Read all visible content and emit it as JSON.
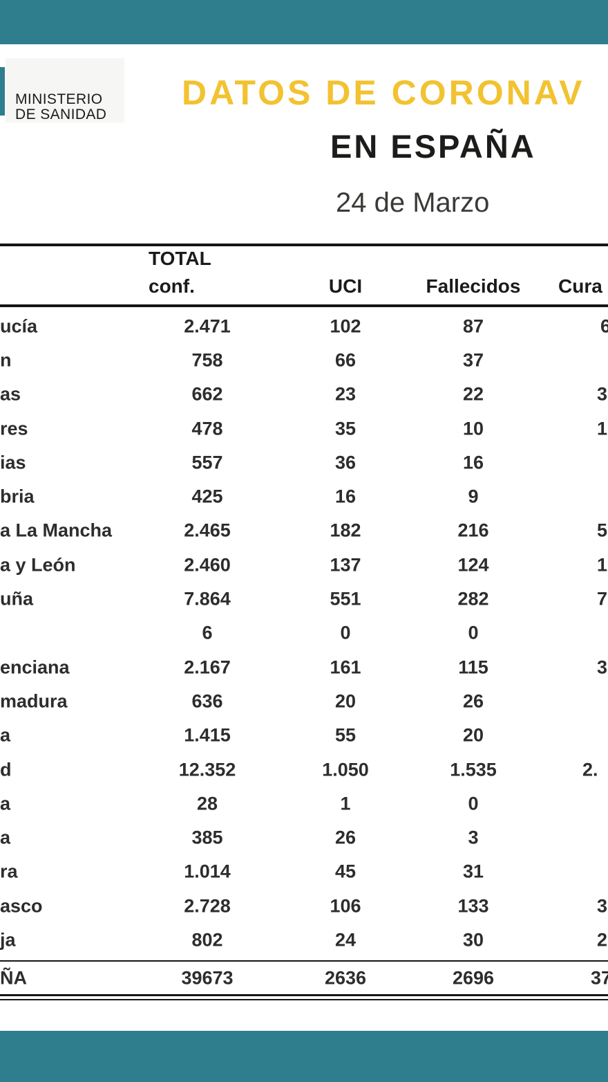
{
  "colors": {
    "teal": "#2e7e8e",
    "yellow": "#f2c230"
  },
  "header": {
    "logo_line1": "MINISTERIO",
    "logo_line2": "DE SANIDAD",
    "title_yellow": "DATOS DE CORONAV",
    "title_black": "EN ESPAÑA",
    "date": "24 de Marzo"
  },
  "table": {
    "headers": {
      "total_line1": "TOTAL",
      "total_line2": "conf.",
      "uci": "UCI",
      "fallecidos": "Fallecidos",
      "curados_partial": "Cura"
    },
    "rows": [
      {
        "region_partial": "ucía",
        "conf": "2.471",
        "uci": "102",
        "fallecidos": "87",
        "curados_partial": "6"
      },
      {
        "region_partial": "n",
        "conf": "758",
        "uci": "66",
        "fallecidos": "37",
        "curados_partial": ""
      },
      {
        "region_partial": "as",
        "conf": "662",
        "uci": "23",
        "fallecidos": "22",
        "curados_partial": "3"
      },
      {
        "region_partial": "res",
        "conf": "478",
        "uci": "35",
        "fallecidos": "10",
        "curados_partial": "1"
      },
      {
        "region_partial": "ias",
        "conf": "557",
        "uci": "36",
        "fallecidos": "16",
        "curados_partial": ""
      },
      {
        "region_partial": "bria",
        "conf": "425",
        "uci": "16",
        "fallecidos": "9",
        "curados_partial": ""
      },
      {
        "region_partial": "a La Mancha",
        "conf": "2.465",
        "uci": "182",
        "fallecidos": "216",
        "curados_partial": "5"
      },
      {
        "region_partial": "a y León",
        "conf": "2.460",
        "uci": "137",
        "fallecidos": "124",
        "curados_partial": "1"
      },
      {
        "region_partial": "uña",
        "conf": "7.864",
        "uci": "551",
        "fallecidos": "282",
        "curados_partial": "7"
      },
      {
        "region_partial": "",
        "conf": "6",
        "uci": "0",
        "fallecidos": "0",
        "curados_partial": ""
      },
      {
        "region_partial": "enciana",
        "conf": "2.167",
        "uci": "161",
        "fallecidos": "115",
        "curados_partial": "3"
      },
      {
        "region_partial": "madura",
        "conf": "636",
        "uci": "20",
        "fallecidos": "26",
        "curados_partial": ""
      },
      {
        "region_partial": "a",
        "conf": "1.415",
        "uci": "55",
        "fallecidos": "20",
        "curados_partial": ""
      },
      {
        "region_partial": "d",
        "conf": "12.352",
        "uci": "1.050",
        "fallecidos": "1.535",
        "curados_partial": "2."
      },
      {
        "region_partial": "a",
        "conf": "28",
        "uci": "1",
        "fallecidos": "0",
        "curados_partial": ""
      },
      {
        "region_partial": "a",
        "conf": "385",
        "uci": "26",
        "fallecidos": "3",
        "curados_partial": ""
      },
      {
        "region_partial": "ra",
        "conf": "1.014",
        "uci": "45",
        "fallecidos": "31",
        "curados_partial": ""
      },
      {
        "region_partial": "asco",
        "conf": "2.728",
        "uci": "106",
        "fallecidos": "133",
        "curados_partial": "3"
      },
      {
        "region_partial": "ja",
        "conf": "802",
        "uci": "24",
        "fallecidos": "30",
        "curados_partial": "2"
      }
    ],
    "total_row": {
      "region_partial": "ÑA",
      "conf": "39673",
      "uci": "2636",
      "fallecidos": "2696",
      "curados_partial": "37"
    }
  }
}
